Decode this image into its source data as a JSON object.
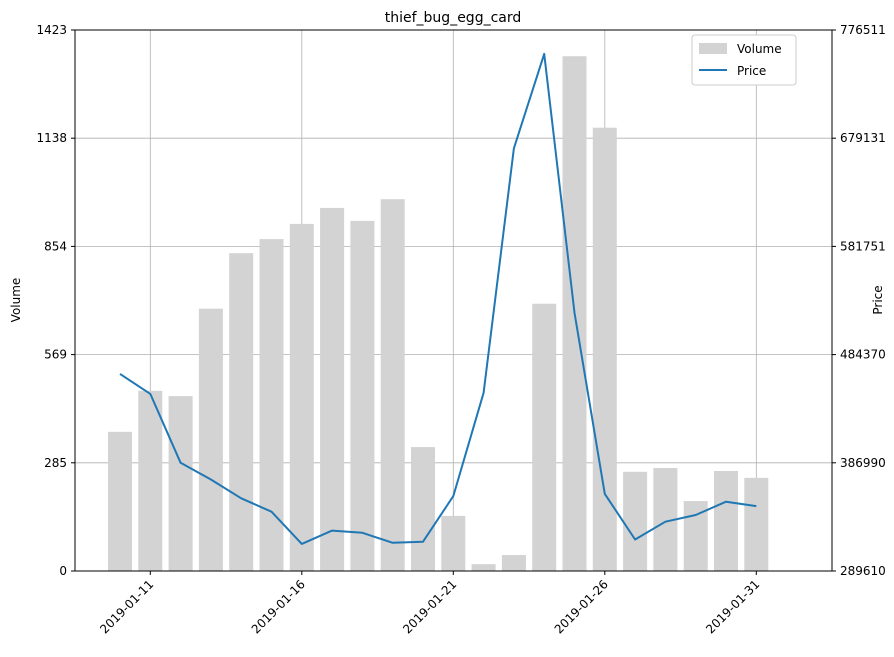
{
  "chart_data": {
    "type": "bar+line",
    "title": "thief_bug_egg_card",
    "xlabel": "",
    "ylabel_left": "Volume",
    "ylabel_right": "Price",
    "left_ticks": [
      "0",
      "285",
      "569",
      "854",
      "1138",
      "1423"
    ],
    "right_ticks": [
      "289610",
      "386990",
      "484370",
      "581751",
      "679131",
      "776511"
    ],
    "ylim_left": [
      0,
      1423
    ],
    "ylim_right": [
      289610,
      776511
    ],
    "x_ticks": [
      "2019-01-11",
      "2019-01-16",
      "2019-01-21",
      "2019-01-26",
      "2019-01-31"
    ],
    "grid": true,
    "legend_position": "top-right",
    "dates": [
      "2019-01-10",
      "2019-01-11",
      "2019-01-12",
      "2019-01-13",
      "2019-01-14",
      "2019-01-15",
      "2019-01-16",
      "2019-01-17",
      "2019-01-18",
      "2019-01-19",
      "2019-01-20",
      "2019-01-21",
      "2019-01-22",
      "2019-01-23",
      "2019-01-24",
      "2019-01-25",
      "2019-01-26",
      "2019-01-27",
      "2019-01-28",
      "2019-01-29",
      "2019-01-30",
      "2019-01-31"
    ],
    "series": [
      {
        "name": "Volume",
        "type": "bar",
        "axis": "left",
        "color": "#d3d3d3",
        "values": [
          366,
          474,
          460,
          690,
          836,
          873,
          913,
          955,
          921,
          978,
          326,
          145,
          18,
          42,
          703,
          1354,
          1166,
          261,
          271,
          184,
          263,
          245
        ]
      },
      {
        "name": "Price",
        "type": "line",
        "axis": "right",
        "color": "#1f77b4",
        "values": [
          467000,
          449000,
          387000,
          372000,
          355000,
          343000,
          314000,
          326000,
          324000,
          315000,
          316000,
          357000,
          450000,
          670000,
          755000,
          522000,
          359000,
          318000,
          334000,
          340000,
          352000,
          348000
        ]
      }
    ]
  }
}
